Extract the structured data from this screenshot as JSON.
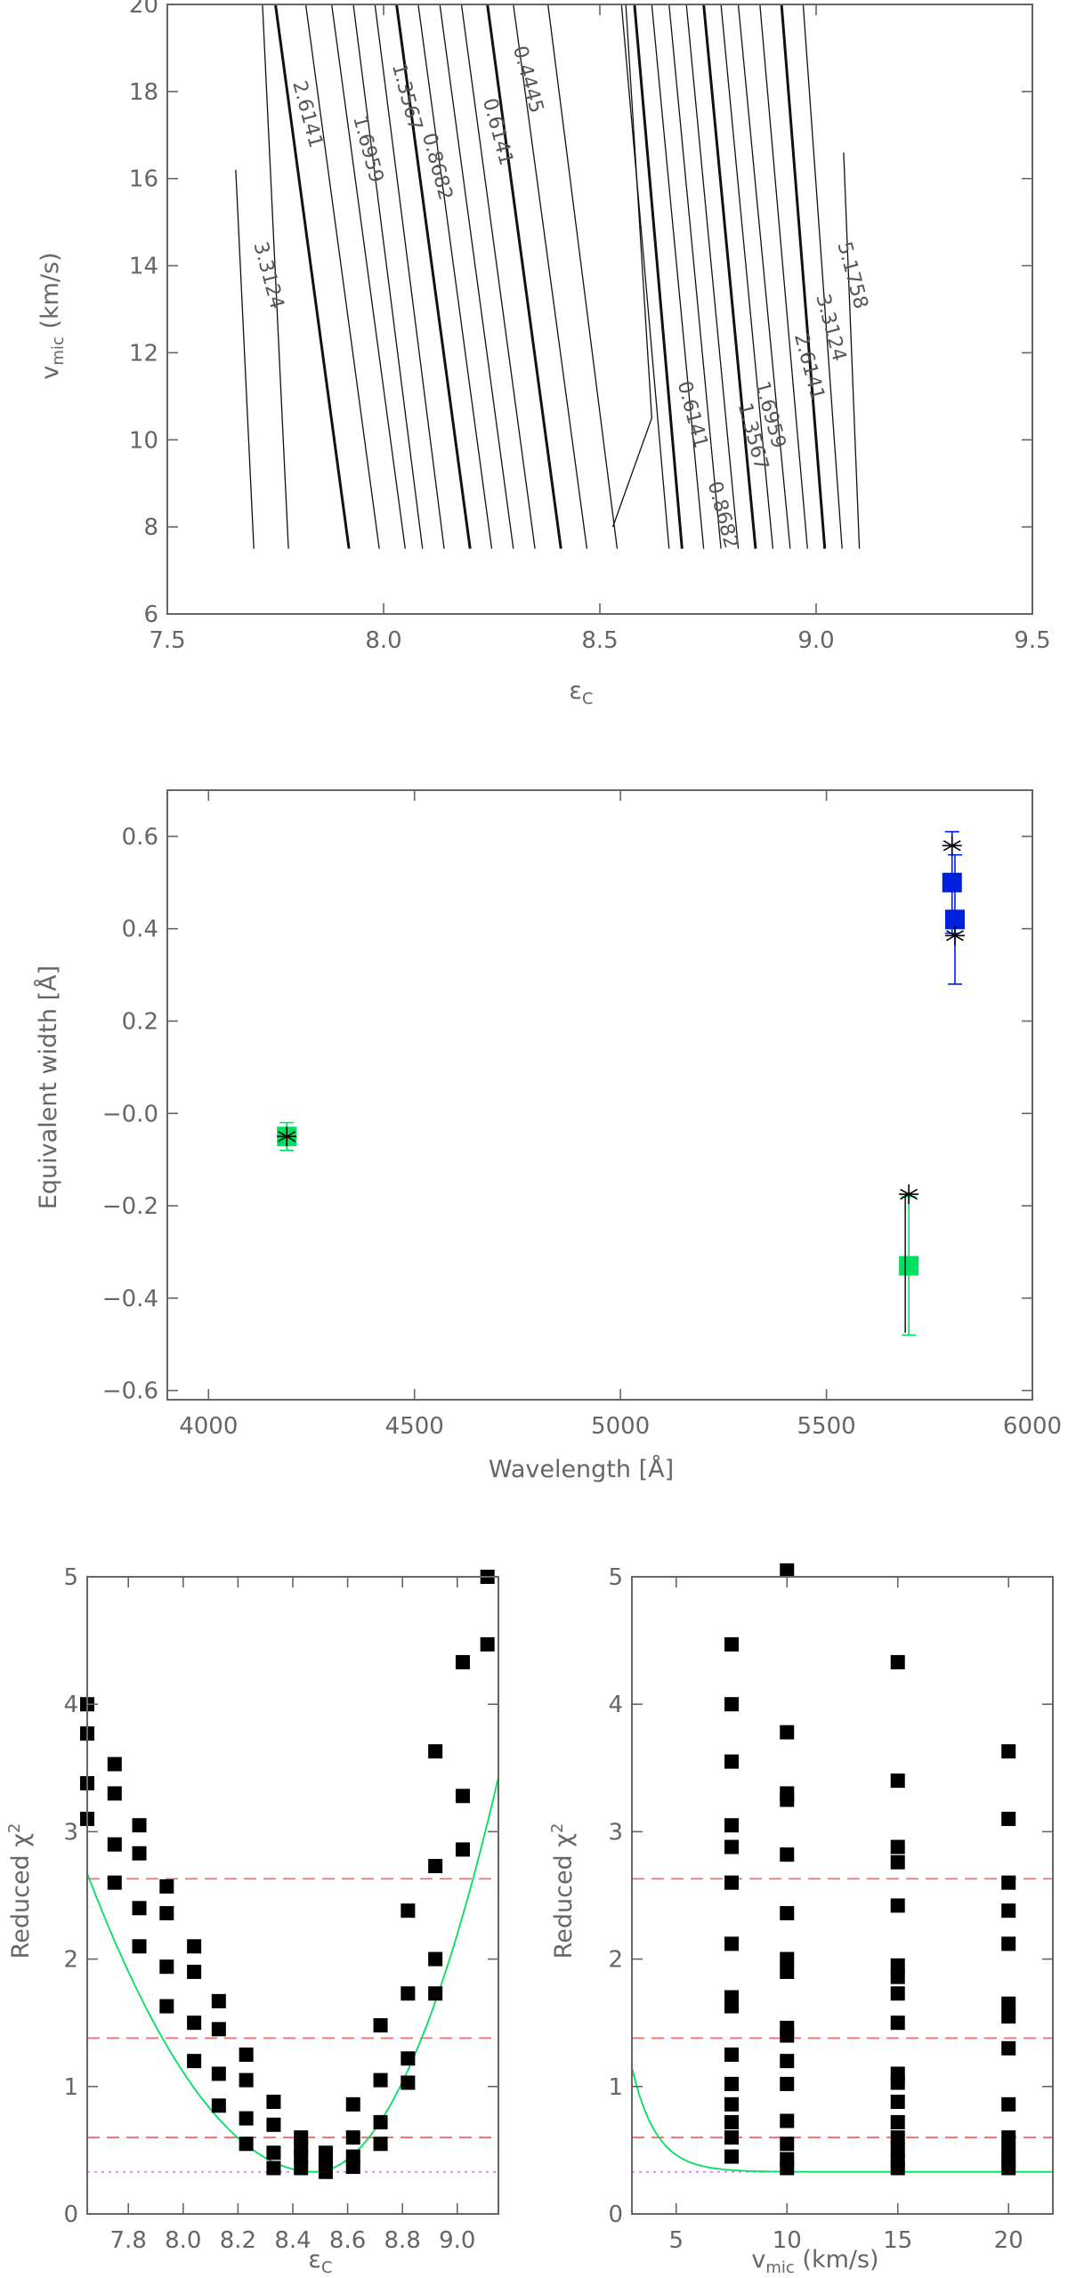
{
  "chart_data": [
    {
      "type": "contour",
      "xlabel": "εC",
      "ylabel": "vmic (km/s)",
      "xlim": [
        7.5,
        9.5
      ],
      "ylim": [
        6,
        20
      ],
      "xticks": [
        "7.5",
        "8.0",
        "8.5",
        "9.0",
        "9.5"
      ],
      "yticks": [
        "6",
        "8",
        "10",
        "12",
        "14",
        "16",
        "18",
        "20"
      ],
      "contour_levels": [
        "0.4445",
        "0.6141",
        "0.8682",
        "1.3567",
        "1.6959",
        "2.6141",
        "3.3124",
        "5.1758"
      ],
      "left_labels": [
        "3.3124",
        "2.6141",
        "1.6959",
        "1.3567",
        "0.8682",
        "0.6141",
        "0.4445"
      ],
      "right_labels": [
        "0.6141",
        "0.8682",
        "1.3567",
        "1.6959",
        "2.6141",
        "3.3124",
        "5.1758"
      ]
    },
    {
      "type": "scatter",
      "xlabel": "Wavelength [Å]",
      "ylabel": "Equivalent width [Å]",
      "xlim": [
        3900,
        6000
      ],
      "ylim": [
        -0.62,
        0.7
      ],
      "xticks": [
        "4000",
        "4500",
        "5000",
        "5500",
        "6000"
      ],
      "yticks": [
        "−0.6",
        "−0.4",
        "−0.2",
        "−0.0",
        "0.2",
        "0.4",
        "0.6"
      ],
      "series": [
        {
          "color": "#00e060",
          "marker": "square",
          "points": [
            {
              "x": 4190,
              "y": -0.05,
              "err": 0.03
            },
            {
              "x": 5700,
              "y": -0.33,
              "err": 0.15
            }
          ]
        },
        {
          "color": "#0020e0",
          "marker": "square",
          "points": [
            {
              "x": 5805,
              "y": 0.5,
              "err": 0.11
            },
            {
              "x": 5812,
              "y": 0.42,
              "err": 0.14
            }
          ]
        },
        {
          "color": "#000000",
          "marker": "asterisk",
          "points": [
            {
              "x": 4190,
              "y": -0.05
            },
            {
              "x": 5700,
              "y": -0.175
            },
            {
              "x": 5805,
              "y": 0.58
            },
            {
              "x": 5812,
              "y": 0.385
            }
          ]
        }
      ]
    },
    {
      "type": "scatter",
      "xlabel": "εC",
      "ylabel": "Reduced χ²",
      "xlim": [
        7.65,
        9.15
      ],
      "ylim": [
        0,
        5
      ],
      "xticks": [
        "7.8",
        "8.0",
        "8.2",
        "8.4",
        "8.6",
        "8.8",
        "9.0"
      ],
      "yticks": [
        "0",
        "1",
        "2",
        "3",
        "4",
        "5"
      ],
      "hlines_dashed": [
        2.63,
        1.38,
        0.6
      ],
      "hline_dotted": 0.33,
      "fit_curve": {
        "color": "#00e060",
        "min_x": 8.48,
        "min_y": 0.33,
        "a_left": 3.4,
        "a_right": 6.9
      },
      "points": [
        [
          7.65,
          4.0
        ],
        [
          7.65,
          3.77
        ],
        [
          7.65,
          3.38
        ],
        [
          7.65,
          3.1
        ],
        [
          7.75,
          3.53
        ],
        [
          7.75,
          3.3
        ],
        [
          7.75,
          2.9
        ],
        [
          7.75,
          2.6
        ],
        [
          7.84,
          3.05
        ],
        [
          7.84,
          2.83
        ],
        [
          7.84,
          2.4
        ],
        [
          7.84,
          2.1
        ],
        [
          7.94,
          2.57
        ],
        [
          7.94,
          2.36
        ],
        [
          7.94,
          1.94
        ],
        [
          7.94,
          1.63
        ],
        [
          8.04,
          2.1
        ],
        [
          8.04,
          1.9
        ],
        [
          8.04,
          1.5
        ],
        [
          8.04,
          1.2
        ],
        [
          8.13,
          1.67
        ],
        [
          8.13,
          1.45
        ],
        [
          8.13,
          1.1
        ],
        [
          8.13,
          0.85
        ],
        [
          8.23,
          1.25
        ],
        [
          8.23,
          1.05
        ],
        [
          8.23,
          0.75
        ],
        [
          8.23,
          0.55
        ],
        [
          8.33,
          0.88
        ],
        [
          8.33,
          0.7
        ],
        [
          8.33,
          0.48
        ],
        [
          8.33,
          0.36
        ],
        [
          8.43,
          0.6
        ],
        [
          8.43,
          0.52
        ],
        [
          8.43,
          0.45
        ],
        [
          8.43,
          0.36
        ],
        [
          8.52,
          0.48
        ],
        [
          8.52,
          0.42
        ],
        [
          8.52,
          0.37
        ],
        [
          8.52,
          0.33
        ],
        [
          8.62,
          0.86
        ],
        [
          8.62,
          0.6
        ],
        [
          8.62,
          0.45
        ],
        [
          8.62,
          0.37
        ],
        [
          8.72,
          1.48
        ],
        [
          8.72,
          1.05
        ],
        [
          8.72,
          0.72
        ],
        [
          8.72,
          0.55
        ],
        [
          8.82,
          2.38
        ],
        [
          8.82,
          1.73
        ],
        [
          8.82,
          1.22
        ],
        [
          8.82,
          1.03
        ],
        [
          8.92,
          3.63
        ],
        [
          8.92,
          2.73
        ],
        [
          8.92,
          2.0
        ],
        [
          8.92,
          1.73
        ],
        [
          9.02,
          4.33
        ],
        [
          9.02,
          3.28
        ],
        [
          9.02,
          2.86
        ],
        [
          9.11,
          4.47
        ],
        [
          9.11,
          5.0
        ]
      ]
    },
    {
      "type": "scatter",
      "xlabel": "vmic (km/s)",
      "ylabel": "Reduced χ²",
      "xlim": [
        3,
        22
      ],
      "ylim": [
        0,
        5
      ],
      "xticks": [
        "5",
        "10",
        "15",
        "20"
      ],
      "yticks": [
        "0",
        "1",
        "2",
        "3",
        "4",
        "5"
      ],
      "hlines_dashed": [
        2.63,
        1.38,
        0.6
      ],
      "hline_dotted": 0.33,
      "fit_curve": {
        "color": "#00e060",
        "baseline": 0.33,
        "amplitude": 0.82,
        "decay": 1.1
      },
      "points": [
        [
          7.5,
          4.47
        ],
        [
          7.5,
          4.0
        ],
        [
          7.5,
          3.55
        ],
        [
          7.5,
          3.05
        ],
        [
          7.5,
          2.88
        ],
        [
          7.5,
          2.6
        ],
        [
          7.5,
          2.12
        ],
        [
          7.5,
          1.7
        ],
        [
          7.5,
          1.63
        ],
        [
          7.5,
          1.25
        ],
        [
          7.5,
          1.02
        ],
        [
          7.5,
          0.86
        ],
        [
          7.5,
          0.72
        ],
        [
          7.5,
          0.6
        ],
        [
          7.5,
          0.45
        ],
        [
          10,
          5.05
        ],
        [
          10,
          3.78
        ],
        [
          10,
          3.3
        ],
        [
          10,
          3.25
        ],
        [
          10,
          2.82
        ],
        [
          10,
          2.36
        ],
        [
          10,
          2.0
        ],
        [
          10,
          1.9
        ],
        [
          10,
          1.46
        ],
        [
          10,
          1.4
        ],
        [
          10,
          1.2
        ],
        [
          10,
          1.02
        ],
        [
          10,
          0.73
        ],
        [
          10,
          0.55
        ],
        [
          10,
          0.43
        ],
        [
          10,
          0.36
        ],
        [
          15,
          4.33
        ],
        [
          15,
          3.4
        ],
        [
          15,
          2.88
        ],
        [
          15,
          2.76
        ],
        [
          15,
          2.42
        ],
        [
          15,
          1.95
        ],
        [
          15,
          1.86
        ],
        [
          15,
          1.73
        ],
        [
          15,
          1.5
        ],
        [
          15,
          1.1
        ],
        [
          15,
          1.03
        ],
        [
          15,
          0.88
        ],
        [
          15,
          0.72
        ],
        [
          15,
          0.6
        ],
        [
          15,
          0.5
        ],
        [
          15,
          0.42
        ],
        [
          15,
          0.36
        ],
        [
          20,
          3.63
        ],
        [
          20,
          3.1
        ],
        [
          20,
          2.6
        ],
        [
          20,
          2.38
        ],
        [
          20,
          2.12
        ],
        [
          20,
          1.65
        ],
        [
          20,
          1.55
        ],
        [
          20,
          1.3
        ],
        [
          20,
          0.86
        ],
        [
          20,
          0.6
        ],
        [
          20,
          0.5
        ],
        [
          20,
          0.42
        ],
        [
          20,
          0.36
        ]
      ]
    }
  ]
}
